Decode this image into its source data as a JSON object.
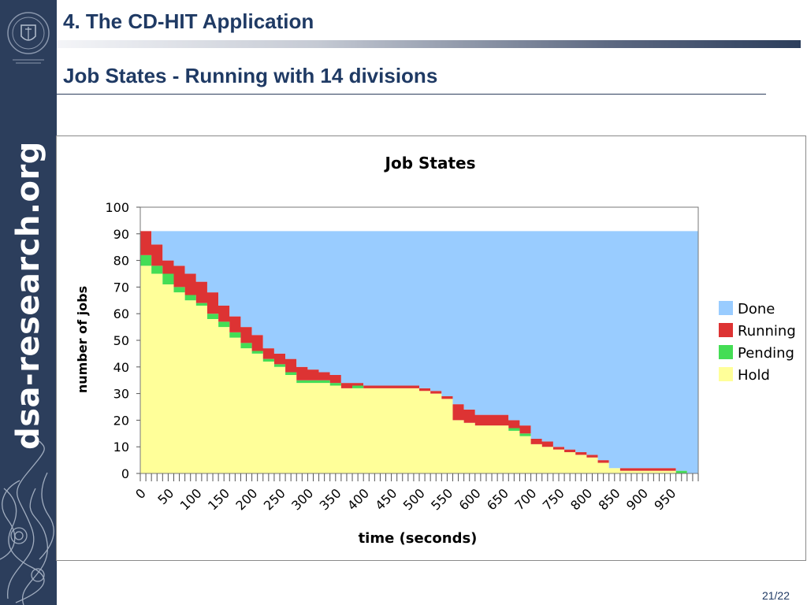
{
  "header": {
    "section_title": "4. The CD-HIT Application",
    "slide_title": "Job States - Running with 14 divisions"
  },
  "sidebar": {
    "brand_text": "dsa-research.org"
  },
  "footer": {
    "page_number": "21/22"
  },
  "colors": {
    "sidebar": "#2c3e5c",
    "title_text": "#1f3a64",
    "done": "#99ccff",
    "running": "#dd3333",
    "pending": "#44dd55",
    "hold": "#ffff99"
  },
  "chart_data": {
    "type": "area",
    "stacked": true,
    "title": "Job States",
    "xlabel": "time (seconds)",
    "ylabel": "number of jobs",
    "xlim": [
      0,
      1000
    ],
    "ylim": [
      0,
      100
    ],
    "yticks": [
      "0",
      "10",
      "20",
      "30",
      "40",
      "50",
      "60",
      "70",
      "80",
      "90",
      "100"
    ],
    "xticks": [
      "0",
      "50",
      "100",
      "150",
      "200",
      "250",
      "300",
      "350",
      "400",
      "450",
      "500",
      "550",
      "600",
      "650",
      "700",
      "750",
      "800",
      "850",
      "900",
      "950"
    ],
    "legend_position": "right",
    "x": [
      0,
      20,
      40,
      60,
      80,
      100,
      120,
      140,
      160,
      180,
      200,
      220,
      240,
      260,
      280,
      300,
      320,
      340,
      360,
      380,
      400,
      420,
      440,
      460,
      480,
      500,
      520,
      540,
      560,
      580,
      600,
      620,
      640,
      660,
      680,
      700,
      720,
      740,
      760,
      780,
      800,
      820,
      840,
      860,
      880,
      900,
      920,
      940,
      960,
      980
    ],
    "series": [
      {
        "name": "Hold",
        "values": [
          78,
          75,
          71,
          68,
          65,
          63,
          58,
          55,
          51,
          47,
          45,
          42,
          40,
          37,
          34,
          34,
          34,
          33,
          32,
          32,
          32,
          32,
          32,
          32,
          32,
          31,
          30,
          28,
          20,
          19,
          18,
          18,
          18,
          16,
          14,
          11,
          10,
          9,
          8,
          7,
          6,
          4,
          2,
          1,
          1,
          1,
          1,
          1,
          0,
          0
        ]
      },
      {
        "name": "Pending",
        "values": [
          4,
          3,
          4,
          2,
          2,
          1,
          2,
          2,
          2,
          2,
          1,
          1,
          1,
          1,
          1,
          1,
          1,
          1,
          0,
          1,
          0,
          0,
          0,
          0,
          0,
          0,
          0,
          0,
          0,
          0,
          0,
          0,
          0,
          1,
          1,
          0,
          0,
          0,
          0,
          0,
          0,
          0,
          0,
          0,
          0,
          0,
          0,
          0,
          1,
          0
        ]
      },
      {
        "name": "Running",
        "values": [
          9,
          8,
          5,
          8,
          8,
          8,
          8,
          6,
          6,
          6,
          6,
          4,
          4,
          5,
          5,
          4,
          3,
          3,
          2,
          1,
          1,
          1,
          1,
          1,
          1,
          1,
          1,
          1,
          6,
          5,
          4,
          4,
          4,
          3,
          3,
          2,
          2,
          1,
          1,
          1,
          1,
          1,
          0,
          1,
          1,
          1,
          1,
          1,
          0,
          0
        ]
      },
      {
        "name": "Done",
        "values": [
          0,
          5,
          11,
          13,
          16,
          19,
          23,
          28,
          32,
          36,
          39,
          44,
          46,
          48,
          51,
          52,
          53,
          54,
          57,
          57,
          58,
          58,
          58,
          58,
          58,
          59,
          60,
          62,
          65,
          67,
          69,
          69,
          69,
          71,
          73,
          78,
          79,
          81,
          82,
          83,
          84,
          86,
          89,
          89,
          89,
          89,
          89,
          89,
          90,
          91
        ]
      }
    ]
  }
}
